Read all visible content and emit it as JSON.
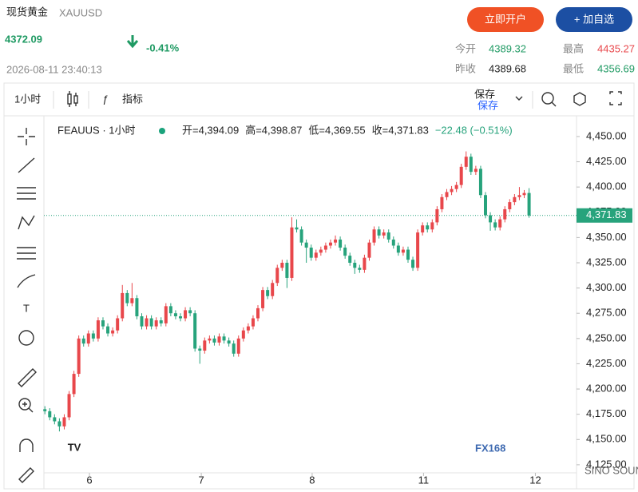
{
  "header": {
    "title": "现货黄金",
    "symbol": "XAUUSD",
    "price": "4372.09",
    "change": "-0.41%",
    "datetime": "2026-08-11 23:40:13",
    "buttons": [
      "立即开户",
      "+ 加自选"
    ],
    "stats": [
      {
        "label": "今开",
        "value": "4389.32"
      },
      {
        "label": "最高",
        "value": "4435.27"
      },
      {
        "label": "昨收",
        "value": "4389.68"
      },
      {
        "label": "最低",
        "value": "4356.69"
      }
    ]
  },
  "toolbar": {
    "interval": "1小时",
    "indicators": "指标",
    "save": "保存",
    "save_sub": "保存"
  },
  "logo": "FX168",
  "watermark": "SINO SOUND",
  "chart_data": {
    "type": "candlestick",
    "legend": "FEAUUS · 1小时",
    "ohlc_legend": [
      "开=4,394.09",
      "高=4,398.87",
      "低=4,369.55",
      "收=4,371.83",
      "−22.48 (−0.51%)"
    ],
    "up_color": "#e8474b",
    "down_color": "#27a37c",
    "grid": false,
    "last_price": {
      "value": 4371.83,
      "label": "4,371.83"
    },
    "xlim": [
      -0.2,
      109.8
    ],
    "xticks": [
      {
        "value": 9.2,
        "label": "6"
      },
      {
        "value": 32.3,
        "label": "7"
      },
      {
        "value": 55.2,
        "label": "8"
      },
      {
        "value": 78.2,
        "label": "11"
      },
      {
        "value": 101.3,
        "label": "12"
      }
    ],
    "ylim": [
      4117,
      4470.5
    ],
    "yticks": [
      {
        "value": 4125,
        "label": "4,125.00"
      },
      {
        "value": 4150,
        "label": "4,150.00"
      },
      {
        "value": 4175,
        "label": "4,175.00"
      },
      {
        "value": 4200,
        "label": "4,200.00"
      },
      {
        "value": 4225,
        "label": "4,225.00"
      },
      {
        "value": 4250,
        "label": "4,250.00"
      },
      {
        "value": 4275,
        "label": "4,275.00"
      },
      {
        "value": 4300,
        "label": "4,300.00"
      },
      {
        "value": 4325,
        "label": "4,325.00"
      },
      {
        "value": 4350,
        "label": "4,350.00"
      },
      {
        "value": 4375,
        "label": "4,375.00"
      },
      {
        "value": 4400,
        "label": "4,400.00"
      },
      {
        "value": 4425,
        "label": "4,425.00"
      },
      {
        "value": 4450,
        "label": "4,450.00"
      }
    ],
    "x": [
      0,
      1,
      2,
      3,
      4,
      5,
      6,
      7,
      8,
      9,
      10,
      11,
      12,
      13,
      14,
      15,
      16,
      17,
      18,
      19,
      20,
      21,
      22,
      23,
      24,
      25,
      26,
      27,
      28,
      29,
      30,
      31,
      32,
      33,
      34,
      35,
      36,
      37,
      38,
      39,
      40,
      41,
      42,
      43,
      44,
      45,
      46,
      47,
      48,
      49,
      50,
      51,
      52,
      53,
      54,
      55,
      56,
      57,
      58,
      59,
      60,
      61,
      62,
      63,
      64,
      65,
      66,
      67,
      68,
      69,
      70,
      71,
      72,
      73,
      74,
      75,
      76,
      77,
      78,
      79,
      80,
      81,
      82,
      83,
      84,
      85,
      86,
      87,
      88,
      89,
      90,
      91,
      92,
      93,
      94,
      95,
      96,
      97,
      98,
      99,
      100
    ],
    "open": [
      4180,
      4178,
      4172,
      4168,
      4163,
      4172,
      4195,
      4215,
      4250,
      4245,
      4255,
      4250,
      4268,
      4262,
      4255,
      4258,
      4270,
      4295,
      4285,
      4290,
      4272,
      4262,
      4270,
      4262,
      4268,
      4265,
      4282,
      4275,
      4272,
      4270,
      4278,
      4275,
      4240,
      4238,
      4248,
      4250,
      4246,
      4252,
      4248,
      4245,
      4235,
      4250,
      4258,
      4262,
      4270,
      4280,
      4298,
      4292,
      4305,
      4320,
      4325,
      4310,
      4360,
      4358,
      4345,
      4340,
      4330,
      4335,
      4338,
      4342,
      4345,
      4348,
      4340,
      4332,
      4325,
      4320,
      4318,
      4330,
      4345,
      4358,
      4352,
      4355,
      4348,
      4342,
      4335,
      4338,
      4328,
      4320,
      4355,
      4362,
      4358,
      4365,
      4378,
      4390,
      4395,
      4398,
      4402,
      4420,
      4430,
      4415,
      4418,
      4392,
      4372,
      4365,
      4360,
      4368,
      4378,
      4385,
      4390,
      4392,
      4394.09
    ],
    "high": [
      4183,
      4181,
      4175,
      4171,
      4175,
      4198,
      4218,
      4253,
      4253,
      4258,
      4258,
      4271,
      4271,
      4265,
      4261,
      4273,
      4303,
      4298,
      4305,
      4293,
      4275,
      4273,
      4273,
      4271,
      4271,
      4285,
      4285,
      4278,
      4275,
      4281,
      4281,
      4278,
      4243,
      4251,
      4253,
      4253,
      4255,
      4255,
      4251,
      4248,
      4253,
      4261,
      4265,
      4273,
      4283,
      4301,
      4301,
      4308,
      4323,
      4328,
      4328,
      4370,
      4368,
      4361,
      4348,
      4343,
      4338,
      4341,
      4345,
      4348,
      4352,
      4351,
      4343,
      4335,
      4328,
      4323,
      4333,
      4348,
      4361,
      4361,
      4358,
      4358,
      4351,
      4345,
      4341,
      4341,
      4331,
      4358,
      4365,
      4365,
      4368,
      4381,
      4393,
      4398,
      4401,
      4405,
      4423,
      4435.27,
      4433,
      4421,
      4421,
      4395,
      4375,
      4368,
      4371,
      4381,
      4388,
      4393,
      4400,
      4397,
      4398.87
    ],
    "low": [
      4175,
      4169,
      4165,
      4158,
      4160,
      4169,
      4192,
      4212,
      4242,
      4242,
      4247,
      4247,
      4259,
      4252,
      4252,
      4255,
      4267,
      4282,
      4282,
      4269,
      4259,
      4259,
      4259,
      4259,
      4262,
      4262,
      4272,
      4269,
      4267,
      4267,
      4272,
      4237,
      4225,
      4235,
      4245,
      4243,
      4243,
      4245,
      4242,
      4232,
      4232,
      4247,
      4255,
      4259,
      4267,
      4277,
      4289,
      4289,
      4302,
      4317,
      4300,
      4307,
      4355,
      4342,
      4325,
      4327,
      4327,
      4332,
      4335,
      4339,
      4342,
      4337,
      4329,
      4322,
      4314,
      4315,
      4315,
      4327,
      4342,
      4349,
      4349,
      4345,
      4339,
      4332,
      4332,
      4325,
      4317,
      4317,
      4352,
      4355,
      4355,
      4362,
      4375,
      4387,
      4392,
      4395,
      4399,
      4417,
      4412,
      4412,
      4389,
      4369,
      4356.69,
      4357,
      4357,
      4365,
      4375,
      4382,
      4387,
      4389,
      4369.55
    ],
    "close": [
      4178,
      4172,
      4168,
      4163,
      4172,
      4195,
      4215,
      4250,
      4245,
      4255,
      4250,
      4268,
      4262,
      4255,
      4258,
      4270,
      4295,
      4285,
      4290,
      4272,
      4262,
      4270,
      4262,
      4268,
      4265,
      4282,
      4275,
      4272,
      4270,
      4278,
      4275,
      4240,
      4238,
      4248,
      4250,
      4246,
      4252,
      4248,
      4245,
      4235,
      4250,
      4258,
      4262,
      4270,
      4280,
      4298,
      4292,
      4305,
      4320,
      4325,
      4310,
      4360,
      4358,
      4345,
      4340,
      4330,
      4335,
      4338,
      4342,
      4345,
      4348,
      4340,
      4332,
      4325,
      4320,
      4318,
      4330,
      4345,
      4358,
      4352,
      4355,
      4348,
      4342,
      4335,
      4338,
      4328,
      4320,
      4355,
      4362,
      4358,
      4365,
      4378,
      4390,
      4395,
      4398,
      4402,
      4420,
      4430,
      4415,
      4418,
      4392,
      4372,
      4365,
      4360,
      4368,
      4378,
      4385,
      4390,
      4392,
      4394.09,
      4371.83
    ]
  }
}
